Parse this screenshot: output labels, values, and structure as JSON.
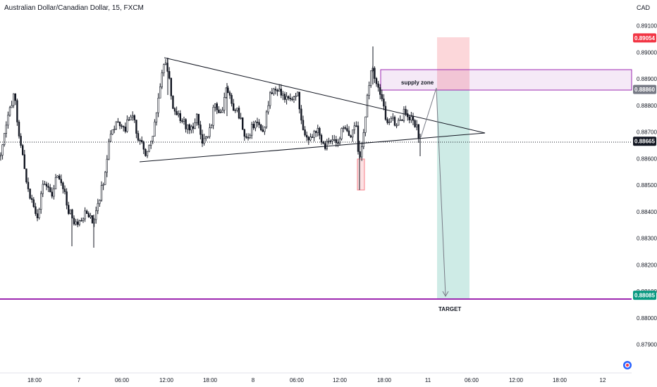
{
  "header": {
    "symbol": "Australian Dollar/Canadian Dollar, 15, FXCM",
    "currency": "CAD"
  },
  "chart_data": {
    "type": "candlestick",
    "y_axis": {
      "side": "right",
      "ticks": [
        "0.89100",
        "0.89000",
        "0.88900",
        "0.88800",
        "0.88700",
        "0.88600",
        "0.88500",
        "0.88400",
        "0.88300",
        "0.88200",
        "0.88100",
        "0.88000",
        "0.87900"
      ],
      "range": [
        0.87865,
        0.89155
      ]
    },
    "x_axis": {
      "ticks": [
        "18:00",
        "7",
        "06:00",
        "12:00",
        "18:00",
        "8",
        "06:00",
        "12:00",
        "18:00",
        "11",
        "06:00",
        "12:00",
        "18:00",
        "12"
      ]
    },
    "price_tags": [
      {
        "value": "0.89054",
        "color": "#f23645"
      },
      {
        "value": "0.88860",
        "color": "#787b86"
      },
      {
        "value": "0.88665",
        "color": "#131722"
      },
      {
        "value": "0.88085",
        "color": "#089981"
      }
    ],
    "annotations": {
      "supply_zone": {
        "label": "supply zone",
        "top": 0.8893,
        "bottom": 0.8886,
        "border_color": "#9c27b0"
      },
      "target": {
        "label": "TARGET",
        "price": 0.88085,
        "color": "#9c27b0"
      },
      "position_short": {
        "entry": 0.8886,
        "stop": 0.89054,
        "target": 0.88085,
        "stop_color": "#f23645",
        "profit_color": "#089981"
      }
    }
  }
}
